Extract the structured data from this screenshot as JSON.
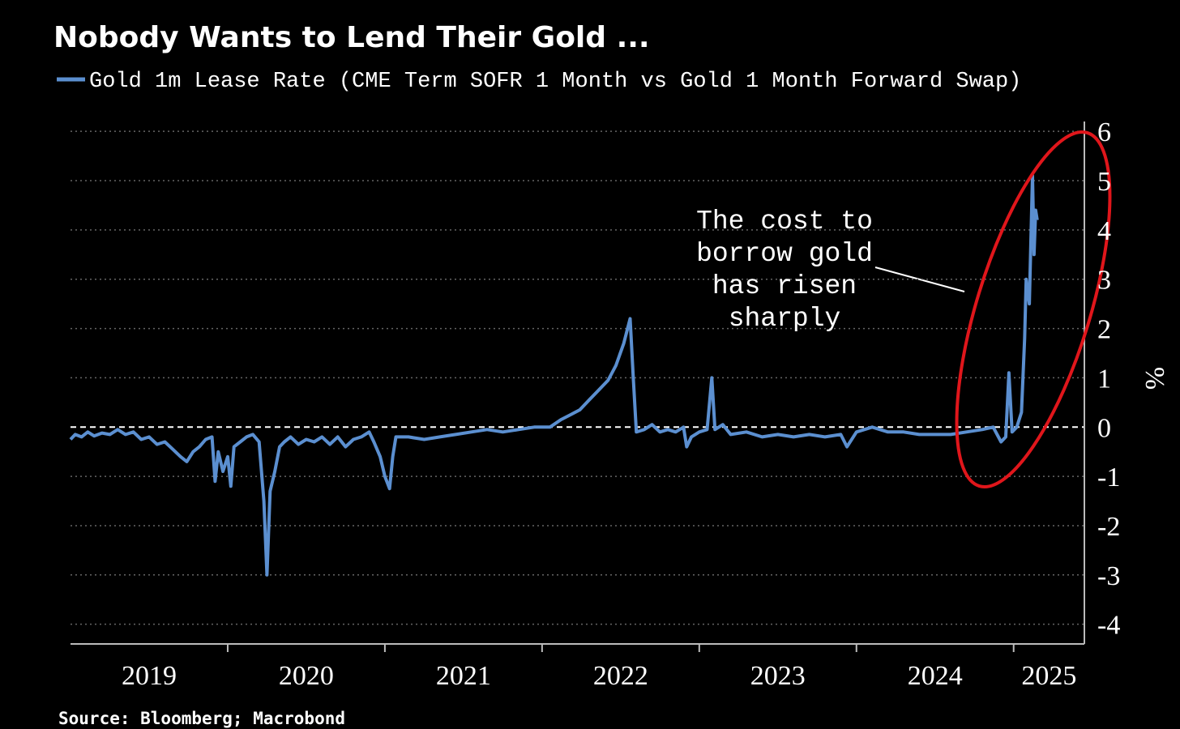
{
  "chart_data": {
    "type": "line",
    "title": "Nobody Wants to Lend Their Gold ...",
    "source": "Source: Bloomberg; Macrobond",
    "ylabel": "%",
    "annotation": [
      "The cost to",
      "borrow gold",
      "has risen",
      "sharply"
    ],
    "xlim": [
      2019,
      2025.45
    ],
    "xticks": [
      {
        "value": 2019,
        "label": "2019"
      },
      {
        "value": 2020,
        "label": "2020"
      },
      {
        "value": 2021,
        "label": "2021"
      },
      {
        "value": 2022,
        "label": "2022"
      },
      {
        "value": 2023,
        "label": "2023"
      },
      {
        "value": 2024,
        "label": "2024"
      },
      {
        "value": 2025,
        "label": "2025"
      }
    ],
    "ylim": [
      -4.4,
      6.2
    ],
    "yticks": [
      -4,
      -3,
      -2,
      -1,
      0,
      1,
      2,
      3,
      4,
      5,
      6
    ],
    "grid": true,
    "x": [
      2019.0,
      2019.03,
      2019.07,
      2019.11,
      2019.15,
      2019.2,
      2019.25,
      2019.3,
      2019.35,
      2019.4,
      2019.45,
      2019.5,
      2019.55,
      2019.6,
      2019.65,
      2019.7,
      2019.74,
      2019.78,
      2019.82,
      2019.86,
      2019.9,
      2019.92,
      2019.94,
      2019.97,
      2020.0,
      2020.02,
      2020.04,
      2020.08,
      2020.12,
      2020.16,
      2020.2,
      2020.23,
      2020.25,
      2020.27,
      2020.3,
      2020.33,
      2020.36,
      2020.4,
      2020.45,
      2020.5,
      2020.55,
      2020.6,
      2020.65,
      2020.7,
      2020.75,
      2020.8,
      2020.85,
      2020.9,
      2020.93,
      2020.97,
      2021.0,
      2021.03,
      2021.05,
      2021.07,
      2021.15,
      2021.25,
      2021.35,
      2021.45,
      2021.55,
      2021.65,
      2021.75,
      2021.85,
      2021.95,
      2022.05,
      2022.12,
      2022.18,
      2022.24,
      2022.3,
      2022.36,
      2022.42,
      2022.47,
      2022.52,
      2022.56,
      2022.58,
      2022.6,
      2022.65,
      2022.7,
      2022.75,
      2022.8,
      2022.85,
      2022.9,
      2022.92,
      2022.95,
      2023.0,
      2023.05,
      2023.08,
      2023.1,
      2023.15,
      2023.2,
      2023.3,
      2023.4,
      2023.5,
      2023.6,
      2023.7,
      2023.8,
      2023.9,
      2023.94,
      2024.0,
      2024.1,
      2024.2,
      2024.3,
      2024.4,
      2024.5,
      2024.6,
      2024.7,
      2024.8,
      2024.87,
      2024.92,
      2024.95,
      2024.97,
      2024.99,
      2025.02,
      2025.05,
      2025.07,
      2025.08,
      2025.1,
      2025.12,
      2025.13,
      2025.14,
      2025.15
    ],
    "series": [
      {
        "name": "Gold 1m Lease Rate (CME Term SOFR 1 Month vs Gold 1 Month Forward Swap)",
        "color": "#5b8fd0",
        "values": [
          -0.25,
          -0.15,
          -0.2,
          -0.1,
          -0.18,
          -0.12,
          -0.15,
          -0.05,
          -0.15,
          -0.1,
          -0.25,
          -0.2,
          -0.35,
          -0.3,
          -0.45,
          -0.6,
          -0.7,
          -0.5,
          -0.4,
          -0.25,
          -0.2,
          -1.1,
          -0.5,
          -0.9,
          -0.6,
          -1.2,
          -0.4,
          -0.3,
          -0.2,
          -0.15,
          -0.3,
          -1.5,
          -3.0,
          -1.3,
          -0.9,
          -0.4,
          -0.3,
          -0.2,
          -0.35,
          -0.25,
          -0.3,
          -0.2,
          -0.35,
          -0.2,
          -0.4,
          -0.25,
          -0.2,
          -0.1,
          -0.3,
          -0.6,
          -1.0,
          -1.25,
          -0.6,
          -0.2,
          -0.2,
          -0.25,
          -0.2,
          -0.15,
          -0.1,
          -0.05,
          -0.1,
          -0.05,
          0.0,
          0.0,
          0.15,
          0.25,
          0.35,
          0.55,
          0.75,
          0.95,
          1.25,
          1.7,
          2.2,
          1.0,
          -0.1,
          -0.05,
          0.05,
          -0.1,
          -0.05,
          -0.1,
          0.0,
          -0.4,
          -0.2,
          -0.1,
          -0.05,
          1.0,
          -0.05,
          0.05,
          -0.15,
          -0.1,
          -0.2,
          -0.15,
          -0.2,
          -0.15,
          -0.2,
          -0.15,
          -0.4,
          -0.1,
          0.0,
          -0.1,
          -0.1,
          -0.15,
          -0.15,
          -0.15,
          -0.1,
          -0.05,
          0.0,
          -0.3,
          -0.2,
          1.1,
          -0.1,
          0.0,
          0.3,
          1.8,
          3.0,
          2.5,
          5.1,
          3.5,
          4.4,
          4.2
        ]
      }
    ]
  }
}
